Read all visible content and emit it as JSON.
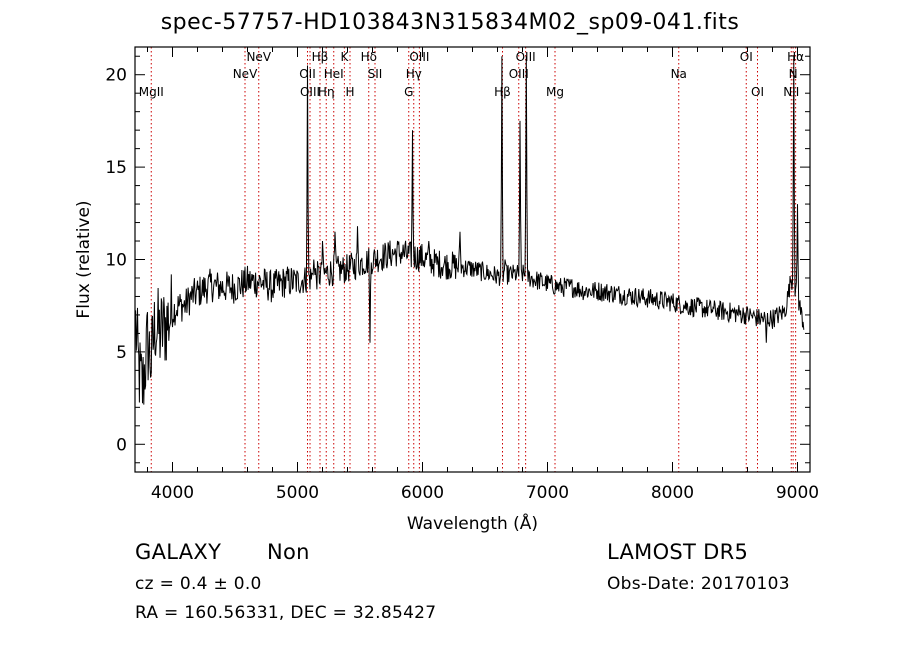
{
  "title": "spec-57757-HD103843N315834M02_sp09-041.fits",
  "info": {
    "class": "GALAXY",
    "subclass": "Non",
    "survey": "LAMOST  DR5",
    "cz": "cz = 0.4 ± 0.0",
    "obs_date": "Obs-Date: 20170103",
    "radec": "RA = 160.56331, DEC =  32.85427"
  },
  "chart_data": {
    "type": "line",
    "xlabel": "Wavelength (Å)",
    "ylabel": "Flux (relative)",
    "xlim": [
      3700,
      9100
    ],
    "ylim": [
      -1.5,
      21.5
    ],
    "xticks": [
      4000,
      5000,
      6000,
      7000,
      8000,
      9000
    ],
    "yticks": [
      0,
      5,
      10,
      15,
      20
    ],
    "grid": false,
    "colors": {
      "spectrum": "#000000",
      "line_markers": "#cc0000",
      "axes": "#000000"
    },
    "spectrum_anchors": [
      [
        3700,
        7.0
      ],
      [
        3730,
        4.0
      ],
      [
        3760,
        3.0
      ],
      [
        3800,
        5.5
      ],
      [
        3830,
        4.5
      ],
      [
        3860,
        6.5
      ],
      [
        3900,
        6.0
      ],
      [
        3950,
        6.5
      ],
      [
        4000,
        7.2
      ],
      [
        4050,
        7.5
      ],
      [
        4100,
        7.5
      ],
      [
        4150,
        8.0
      ],
      [
        4200,
        8.2
      ],
      [
        4300,
        8.6
      ],
      [
        4400,
        8.5
      ],
      [
        4500,
        8.5
      ],
      [
        4600,
        8.8
      ],
      [
        4700,
        8.8
      ],
      [
        4800,
        8.5
      ],
      [
        4900,
        8.8
      ],
      [
        5000,
        8.8
      ],
      [
        5100,
        9.0
      ],
      [
        5200,
        9.2
      ],
      [
        5300,
        9.4
      ],
      [
        5400,
        9.5
      ],
      [
        5500,
        9.8
      ],
      [
        5600,
        10.0
      ],
      [
        5700,
        10.2
      ],
      [
        5800,
        10.4
      ],
      [
        5900,
        10.2
      ],
      [
        6000,
        10.1
      ],
      [
        6100,
        9.8
      ],
      [
        6200,
        9.7
      ],
      [
        6300,
        9.6
      ],
      [
        6400,
        9.5
      ],
      [
        6500,
        9.3
      ],
      [
        6600,
        9.1
      ],
      [
        6700,
        9.2
      ],
      [
        6800,
        9.2
      ],
      [
        6900,
        8.9
      ],
      [
        7000,
        8.7
      ],
      [
        7100,
        8.5
      ],
      [
        7200,
        8.5
      ],
      [
        7300,
        8.3
      ],
      [
        7400,
        8.3
      ],
      [
        7500,
        8.2
      ],
      [
        7600,
        8.1
      ],
      [
        7700,
        8.0
      ],
      [
        7800,
        7.9
      ],
      [
        7900,
        7.8
      ],
      [
        8000,
        7.7
      ],
      [
        8100,
        7.5
      ],
      [
        8200,
        7.4
      ],
      [
        8300,
        7.3
      ],
      [
        8400,
        7.2
      ],
      [
        8500,
        7.1
      ],
      [
        8600,
        7.0
      ],
      [
        8700,
        6.8
      ],
      [
        8800,
        6.8
      ],
      [
        8900,
        7.2
      ],
      [
        8950,
        9.0
      ],
      [
        9000,
        8.0
      ],
      [
        9050,
        6.5
      ]
    ],
    "emission_features": [
      [
        5082,
        20.5
      ],
      [
        5130,
        10.0
      ],
      [
        5200,
        11.0
      ],
      [
        5300,
        11.5
      ],
      [
        5480,
        11.8
      ],
      [
        5580,
        5.5
      ],
      [
        5920,
        17.0
      ],
      [
        6050,
        11.0
      ],
      [
        6300,
        11.5
      ],
      [
        6635,
        21.0
      ],
      [
        6660,
        10.0
      ],
      [
        6780,
        17.5
      ],
      [
        6830,
        21.0
      ],
      [
        8750,
        5.5
      ],
      [
        8970,
        21.0
      ],
      [
        9000,
        13.0
      ]
    ],
    "line_markers": [
      {
        "label": "MgII",
        "x": 3830,
        "row": 3
      },
      {
        "label": "NeV",
        "x": 4580,
        "row": 2
      },
      {
        "label": "NeV",
        "x": 4690,
        "row": 1
      },
      {
        "label": "OII",
        "x": 5080,
        "row": 2
      },
      {
        "label": "OIII",
        "x": 5100,
        "row": 3
      },
      {
        "label": "Hβ",
        "x": 5180,
        "row": 1
      },
      {
        "label": "Hη",
        "x": 5230,
        "row": 3
      },
      {
        "label": "HeI",
        "x": 5290,
        "row": 2
      },
      {
        "label": "K",
        "x": 5375,
        "row": 1
      },
      {
        "label": "H",
        "x": 5420,
        "row": 3
      },
      {
        "label": "Hδ",
        "x": 5570,
        "row": 1
      },
      {
        "label": "SII",
        "x": 5620,
        "row": 2
      },
      {
        "label": "G",
        "x": 5890,
        "row": 3
      },
      {
        "label": "Hγ",
        "x": 5930,
        "row": 2
      },
      {
        "label": "OIII",
        "x": 5975,
        "row": 1
      },
      {
        "label": "Hβ",
        "x": 6640,
        "row": 3
      },
      {
        "label": "OIII",
        "x": 6770,
        "row": 2
      },
      {
        "label": "OIII",
        "x": 6825,
        "row": 1
      },
      {
        "label": "Mg",
        "x": 7060,
        "row": 3
      },
      {
        "label": "Na",
        "x": 8050,
        "row": 2
      },
      {
        "label": "OI",
        "x": 8590,
        "row": 1
      },
      {
        "label": "OI",
        "x": 8680,
        "row": 3
      },
      {
        "label": "NII",
        "x": 8950,
        "row": 3
      },
      {
        "label": "N",
        "x": 8965,
        "row": 2
      },
      {
        "label": "Hα",
        "x": 8985,
        "row": 1
      }
    ]
  }
}
